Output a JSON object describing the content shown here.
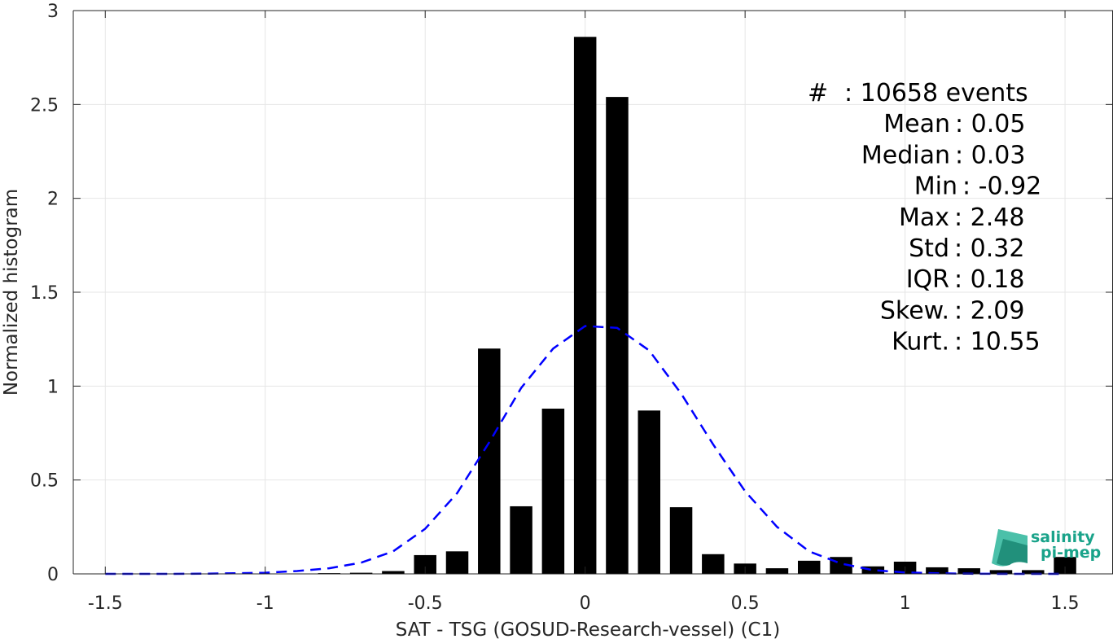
{
  "chart_data": {
    "type": "bar",
    "xlabel": "SAT - TSG (GOSUD-Research-vessel) (C1)",
    "ylabel": "Normalized histogram",
    "xlim": [
      -1.6,
      1.65
    ],
    "ylim": [
      0,
      3
    ],
    "xticks": [
      -1.5,
      -1,
      -0.5,
      0,
      0.5,
      1,
      1.5
    ],
    "xtick_labels": [
      "-1.5",
      "-1",
      "-0.5",
      "0",
      "0.5",
      "1",
      "1.5"
    ],
    "yticks": [
      0,
      0.5,
      1,
      1.5,
      2,
      2.5,
      3
    ],
    "ytick_labels": [
      "0",
      "0.5",
      "1",
      "1.5",
      "2",
      "2.5",
      "3"
    ],
    "grid": true,
    "bar_width": 0.07,
    "series": [
      {
        "kind": "bars",
        "color": "#000000",
        "x": [
          -1.5,
          -1.4,
          -1.3,
          -1.2,
          -1.1,
          -1.0,
          -0.9,
          -0.8,
          -0.7,
          -0.6,
          -0.5,
          -0.4,
          -0.3,
          -0.2,
          -0.1,
          0.0,
          0.1,
          0.2,
          0.3,
          0.4,
          0.5,
          0.6,
          0.7,
          0.8,
          0.9,
          1.0,
          1.1,
          1.2,
          1.3,
          1.4,
          1.5
        ],
        "values": [
          0,
          0,
          0,
          0,
          0,
          0,
          0.002,
          0.004,
          0.006,
          0.015,
          0.1,
          0.12,
          1.2,
          0.36,
          0.88,
          2.86,
          2.54,
          0.87,
          0.355,
          0.105,
          0.055,
          0.03,
          0.07,
          0.09,
          0.04,
          0.065,
          0.035,
          0.03,
          0.02,
          0.02,
          0.09
        ]
      },
      {
        "kind": "line",
        "style": "dashed",
        "color": "#0000ff",
        "x": [
          -1.5,
          -1.4,
          -1.3,
          -1.2,
          -1.1,
          -1.0,
          -0.9,
          -0.8,
          -0.7,
          -0.6,
          -0.5,
          -0.4,
          -0.3,
          -0.2,
          -0.1,
          0.0,
          0.1,
          0.2,
          0.3,
          0.4,
          0.5,
          0.6,
          0.7,
          0.8,
          0.9,
          1.0,
          1.1,
          1.2,
          1.3,
          1.4,
          1.5
        ],
        "values": [
          0.0,
          0.0,
          0.0,
          0.001,
          0.003,
          0.006,
          0.015,
          0.03,
          0.06,
          0.12,
          0.24,
          0.43,
          0.7,
          0.99,
          1.2,
          1.32,
          1.31,
          1.19,
          0.96,
          0.69,
          0.44,
          0.25,
          0.12,
          0.055,
          0.02,
          0.008,
          0.003,
          0.001,
          0.0,
          0.0,
          0.0
        ]
      }
    ],
    "annotations": [
      "#  : 10658 events",
      "Mean : 0.05",
      "Median : 0.03",
      "Min : -0.92",
      "Max : 2.48",
      "Std : 0.32",
      "IQR : 0.18",
      "Skew. : 2.09",
      "Kurt. : 10.55"
    ]
  },
  "logo": {
    "line1": "salinity",
    "line2": "pi-mep",
    "color": "#1aa38a"
  }
}
